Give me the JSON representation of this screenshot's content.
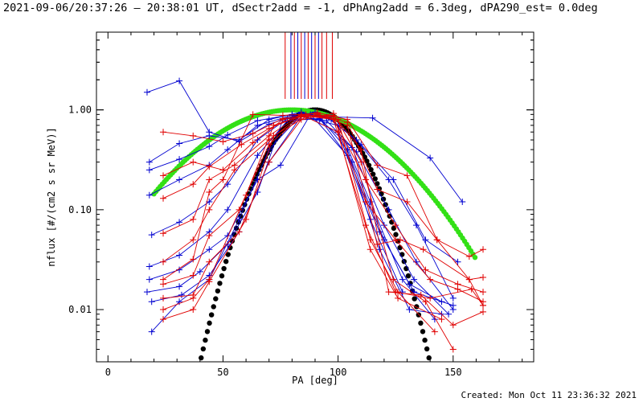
{
  "title": "2021-09-06/20:37:26 — 20:38:01 UT, dSectr2add = -1, dPhAng2add = 6.3deg, dPA290_est=  0.0deg",
  "footer": "Created: Mon Oct 11 23:36:32 2021",
  "colors": {
    "red": "#e00000",
    "blue": "#0000d0",
    "green": "#33e016",
    "black": "#000000"
  },
  "chart_data": {
    "type": "line",
    "xlabel": "PA [deg]",
    "ylabel": "nflux [#/(cm2 s sr MeV)]",
    "xlim": [
      -5,
      185
    ],
    "ylim": [
      0.003,
      6
    ],
    "yscale": "log",
    "xticks": [
      0,
      50,
      100,
      150
    ],
    "yticks": [
      {
        "value": 0.01,
        "label": "0.01"
      },
      {
        "value": 0.1,
        "label": "0.10"
      },
      {
        "value": 1,
        "label": "1.00"
      }
    ],
    "spikes": [
      {
        "x": 77.0,
        "color": "red"
      },
      {
        "x": 79.5,
        "color": "blue"
      },
      {
        "x": 81.0,
        "color": "red"
      },
      {
        "x": 82.5,
        "color": "blue"
      },
      {
        "x": 84.0,
        "color": "red"
      },
      {
        "x": 85.5,
        "color": "blue"
      },
      {
        "x": 87.0,
        "color": "red"
      },
      {
        "x": 88.5,
        "color": "blue"
      },
      {
        "x": 90.0,
        "color": "red"
      },
      {
        "x": 91.5,
        "color": "blue"
      },
      {
        "x": 93.0,
        "color": "red"
      },
      {
        "x": 95.0,
        "color": "red"
      },
      {
        "x": 97.5,
        "color": "red"
      }
    ],
    "series": [
      {
        "color": "blue",
        "points": [
          [
            17,
            1.5
          ],
          [
            31,
            1.95
          ],
          [
            44,
            0.6
          ],
          [
            57,
            0.48
          ],
          [
            70,
            0.72
          ],
          [
            84,
            0.92
          ],
          [
            97,
            0.85
          ],
          [
            115,
            0.83
          ],
          [
            140,
            0.33
          ],
          [
            154,
            0.12
          ]
        ]
      },
      {
        "color": "blue",
        "points": [
          [
            18,
            0.3
          ],
          [
            31,
            0.46
          ],
          [
            44,
            0.55
          ],
          [
            57,
            0.5
          ],
          [
            70,
            0.8
          ],
          [
            84,
            0.95
          ],
          [
            97,
            0.8
          ],
          [
            110,
            0.45
          ],
          [
            124,
            0.2
          ],
          [
            138,
            0.05
          ],
          [
            152,
            0.03
          ]
        ]
      },
      {
        "color": "blue",
        "points": [
          [
            18,
            0.25
          ],
          [
            31,
            0.32
          ],
          [
            44,
            0.43
          ],
          [
            52,
            0.56
          ],
          [
            65,
            0.78
          ],
          [
            80,
            0.9
          ],
          [
            95,
            0.85
          ],
          [
            108,
            0.5
          ],
          [
            122,
            0.2
          ],
          [
            134,
            0.07
          ],
          [
            150,
            0.013
          ]
        ]
      },
      {
        "color": "blue",
        "points": [
          [
            18,
            0.14
          ],
          [
            31,
            0.2
          ],
          [
            44,
            0.28
          ],
          [
            52,
            0.4
          ],
          [
            65,
            0.7
          ],
          [
            80,
            0.88
          ],
          [
            95,
            0.78
          ],
          [
            108,
            0.38
          ],
          [
            122,
            0.1
          ],
          [
            134,
            0.03
          ],
          [
            150,
            0.01
          ]
        ]
      },
      {
        "color": "blue",
        "points": [
          [
            19,
            0.056
          ],
          [
            31,
            0.075
          ],
          [
            44,
            0.12
          ],
          [
            52,
            0.18
          ],
          [
            65,
            0.5
          ],
          [
            78,
            0.82
          ],
          [
            92,
            0.8
          ],
          [
            106,
            0.42
          ],
          [
            120,
            0.07
          ],
          [
            133,
            0.02
          ],
          [
            148,
            0.009
          ]
        ]
      },
      {
        "color": "blue",
        "points": [
          [
            18,
            0.027
          ],
          [
            31,
            0.035
          ],
          [
            44,
            0.06
          ],
          [
            52,
            0.1
          ],
          [
            65,
            0.35
          ],
          [
            78,
            0.78
          ],
          [
            92,
            0.82
          ],
          [
            106,
            0.3
          ],
          [
            120,
            0.05
          ],
          [
            133,
            0.015
          ],
          [
            150,
            0.011
          ]
        ]
      },
      {
        "color": "blue",
        "points": [
          [
            18,
            0.02
          ],
          [
            31,
            0.025
          ],
          [
            44,
            0.04
          ],
          [
            52,
            0.055
          ],
          [
            65,
            0.2
          ],
          [
            75,
            0.28
          ],
          [
            88,
            0.9
          ],
          [
            104,
            0.35
          ],
          [
            118,
            0.06
          ],
          [
            131,
            0.018
          ],
          [
            145,
            0.012
          ]
        ]
      },
      {
        "color": "blue",
        "points": [
          [
            17,
            0.015
          ],
          [
            31,
            0.017
          ],
          [
            40,
            0.024
          ],
          [
            52,
            0.045
          ],
          [
            65,
            0.15
          ],
          [
            76,
            0.8
          ],
          [
            90,
            0.95
          ],
          [
            104,
            0.4
          ],
          [
            118,
            0.04
          ],
          [
            131,
            0.01
          ],
          [
            145,
            0.009
          ]
        ]
      },
      {
        "color": "blue",
        "points": [
          [
            19,
            0.012
          ],
          [
            32,
            0.014
          ],
          [
            44,
            0.022
          ],
          [
            57,
            0.06
          ],
          [
            70,
            0.3
          ],
          [
            84,
            0.86
          ],
          [
            100,
            0.7
          ],
          [
            114,
            0.12
          ],
          [
            128,
            0.02
          ],
          [
            142,
            0.008
          ]
        ]
      },
      {
        "color": "blue",
        "points": [
          [
            19,
            0.006
          ],
          [
            31,
            0.012
          ],
          [
            44,
            0.02
          ],
          [
            57,
            0.08
          ],
          [
            70,
            0.4
          ],
          [
            84,
            0.9
          ],
          [
            100,
            0.6
          ],
          [
            114,
            0.08
          ],
          [
            128,
            0.015
          ]
        ]
      },
      {
        "color": "red",
        "points": [
          [
            24,
            0.6
          ],
          [
            37,
            0.55
          ],
          [
            50,
            0.48
          ],
          [
            63,
            0.58
          ],
          [
            76,
            0.82
          ],
          [
            91,
            0.94
          ],
          [
            104,
            0.8
          ],
          [
            117,
            0.28
          ],
          [
            130,
            0.22
          ],
          [
            143,
            0.05
          ],
          [
            157,
            0.034
          ],
          [
            163,
            0.04
          ]
        ]
      },
      {
        "color": "red",
        "points": [
          [
            24,
            0.22
          ],
          [
            37,
            0.3
          ],
          [
            50,
            0.25
          ],
          [
            63,
            0.47
          ],
          [
            76,
            0.8
          ],
          [
            91,
            0.9
          ],
          [
            104,
            0.75
          ],
          [
            117,
            0.16
          ],
          [
            130,
            0.12
          ],
          [
            143,
            0.05
          ],
          [
            157,
            0.02
          ],
          [
            163,
            0.021
          ]
        ]
      },
      {
        "color": "red",
        "points": [
          [
            24,
            0.13
          ],
          [
            37,
            0.18
          ],
          [
            44,
            0.27
          ],
          [
            58,
            0.45
          ],
          [
            70,
            0.65
          ],
          [
            84,
            0.88
          ],
          [
            98,
            0.82
          ],
          [
            112,
            0.2
          ],
          [
            125,
            0.07
          ],
          [
            138,
            0.025
          ],
          [
            152,
            0.018
          ],
          [
            163,
            0.015
          ]
        ]
      },
      {
        "color": "red",
        "points": [
          [
            24,
            0.058
          ],
          [
            37,
            0.08
          ],
          [
            44,
            0.2
          ],
          [
            55,
            0.28
          ],
          [
            70,
            0.55
          ],
          [
            84,
            0.9
          ],
          [
            98,
            0.85
          ],
          [
            112,
            0.12
          ],
          [
            125,
            0.05
          ],
          [
            140,
            0.02
          ],
          [
            152,
            0.016
          ],
          [
            163,
            0.012
          ]
        ]
      },
      {
        "color": "red",
        "points": [
          [
            24,
            0.03
          ],
          [
            37,
            0.05
          ],
          [
            44,
            0.1
          ],
          [
            55,
            0.25
          ],
          [
            70,
            0.5
          ],
          [
            84,
            0.88
          ],
          [
            98,
            0.8
          ],
          [
            112,
            0.07
          ],
          [
            125,
            0.015
          ],
          [
            140,
            0.013
          ],
          [
            158,
            0.016
          ],
          [
            163,
            0.011
          ]
        ]
      },
      {
        "color": "red",
        "points": [
          [
            24,
            0.02
          ],
          [
            37,
            0.032
          ],
          [
            44,
            0.15
          ],
          [
            50,
            0.2
          ],
          [
            63,
            0.9
          ],
          [
            76,
            0.88
          ],
          [
            91,
            0.92
          ],
          [
            104,
            0.7
          ],
          [
            117,
            0.045
          ],
          [
            127,
            0.05
          ],
          [
            137,
            0.04
          ],
          [
            157,
            0.02
          ],
          [
            163,
            0.011
          ]
        ]
      },
      {
        "color": "red",
        "points": [
          [
            24,
            0.018
          ],
          [
            37,
            0.022
          ],
          [
            44,
            0.055
          ],
          [
            57,
            0.1
          ],
          [
            70,
            0.45
          ],
          [
            84,
            0.85
          ],
          [
            98,
            0.88
          ],
          [
            110,
            0.4
          ],
          [
            122,
            0.015
          ],
          [
            136,
            0.014
          ],
          [
            150,
            0.007
          ],
          [
            163,
            0.0095
          ]
        ]
      },
      {
        "color": "red",
        "points": [
          [
            24,
            0.013
          ],
          [
            37,
            0.014
          ],
          [
            44,
            0.03
          ],
          [
            57,
            0.06
          ],
          [
            70,
            0.3
          ],
          [
            84,
            0.8
          ],
          [
            98,
            0.92
          ],
          [
            110,
            0.3
          ],
          [
            124,
            0.02
          ],
          [
            138,
            0.012
          ],
          [
            150,
            0.004
          ]
        ]
      },
      {
        "color": "red",
        "points": [
          [
            24,
            0.01
          ],
          [
            37,
            0.013
          ],
          [
            44,
            0.02
          ],
          [
            60,
            0.14
          ],
          [
            72,
            0.7
          ],
          [
            86,
            0.9
          ],
          [
            100,
            0.8
          ],
          [
            114,
            0.05
          ],
          [
            126,
            0.015
          ],
          [
            142,
            0.006
          ]
        ]
      },
      {
        "color": "red",
        "points": [
          [
            24,
            0.008
          ],
          [
            37,
            0.01
          ],
          [
            44,
            0.019
          ],
          [
            60,
            0.08
          ],
          [
            72,
            0.55
          ],
          [
            86,
            0.85
          ],
          [
            100,
            0.6
          ],
          [
            114,
            0.04
          ],
          [
            126,
            0.013
          ],
          [
            145,
            0.008
          ]
        ]
      }
    ],
    "fits": [
      {
        "name": "",
        "color": "green",
        "style": "dots",
        "function": "exp(-((x-80)/43.1)^2)",
        "xrange": [
          20,
          160
        ]
      },
      {
        "name": "",
        "color": "black",
        "style": "dots",
        "function": "exp(-((x-90)/20.7)^2)",
        "xrange": [
          27,
          142
        ]
      }
    ]
  }
}
